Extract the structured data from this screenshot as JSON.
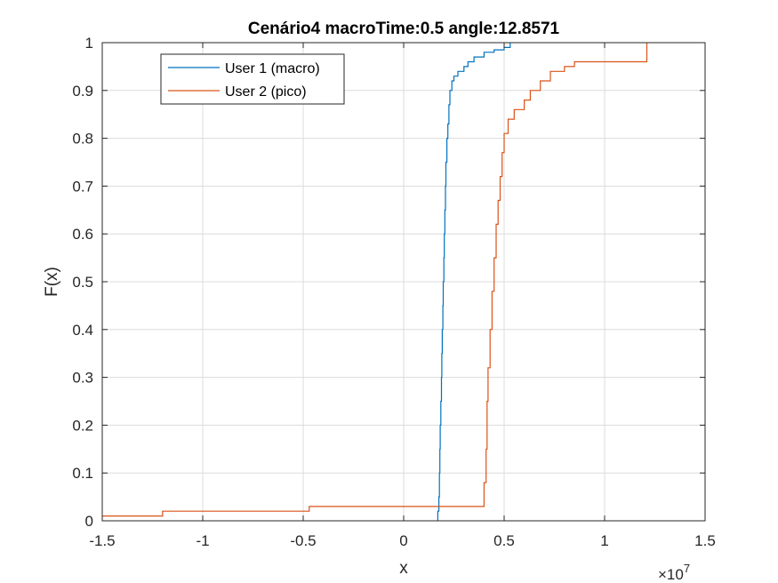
{
  "chart_data": {
    "type": "line",
    "step": true,
    "title": "Cenário4 macroTime:0.5 angle:12.8571",
    "xlabel": "x",
    "ylabel": "F(x)",
    "x_multiplier": "×10",
    "x_multiplier_exp": "7",
    "xlim": [
      -1.5,
      1.5
    ],
    "ylim": [
      0,
      1
    ],
    "xticks": [
      -1.5,
      -1,
      -0.5,
      0,
      0.5,
      1,
      1.5
    ],
    "xtick_labels": [
      "-1.5",
      "-1",
      "-0.5",
      "0",
      "0.5",
      "1",
      "1.5"
    ],
    "yticks": [
      0,
      0.1,
      0.2,
      0.3,
      0.4,
      0.5,
      0.6,
      0.7,
      0.8,
      0.9,
      1
    ],
    "ytick_labels": [
      "0",
      "0.1",
      "0.2",
      "0.3",
      "0.4",
      "0.5",
      "0.6",
      "0.7",
      "0.8",
      "0.9",
      "1"
    ],
    "grid": true,
    "legend_position": "top-left",
    "series": [
      {
        "name": "User 1 (macro)",
        "color": "#0072BD",
        "points": [
          [
            0.17,
            0
          ],
          [
            0.17,
            0.02
          ],
          [
            0.175,
            0.05
          ],
          [
            0.178,
            0.1
          ],
          [
            0.18,
            0.15
          ],
          [
            0.182,
            0.2
          ],
          [
            0.185,
            0.25
          ],
          [
            0.188,
            0.3
          ],
          [
            0.19,
            0.35
          ],
          [
            0.192,
            0.4
          ],
          [
            0.195,
            0.45
          ],
          [
            0.197,
            0.5
          ],
          [
            0.2,
            0.55
          ],
          [
            0.202,
            0.6
          ],
          [
            0.205,
            0.65
          ],
          [
            0.208,
            0.7
          ],
          [
            0.21,
            0.75
          ],
          [
            0.215,
            0.8
          ],
          [
            0.22,
            0.83
          ],
          [
            0.225,
            0.87
          ],
          [
            0.23,
            0.9
          ],
          [
            0.24,
            0.92
          ],
          [
            0.25,
            0.93
          ],
          [
            0.27,
            0.94
          ],
          [
            0.3,
            0.95
          ],
          [
            0.32,
            0.96
          ],
          [
            0.35,
            0.97
          ],
          [
            0.4,
            0.98
          ],
          [
            0.45,
            0.985
          ],
          [
            0.5,
            0.99
          ],
          [
            0.53,
            1.0
          ]
        ]
      },
      {
        "name": "User 2 (pico)",
        "color": "#D95319",
        "points": [
          [
            -1.5,
            0.01
          ],
          [
            -1.2,
            0.01
          ],
          [
            -1.2,
            0.02
          ],
          [
            -0.47,
            0.02
          ],
          [
            -0.47,
            0.03
          ],
          [
            0.39,
            0.03
          ],
          [
            0.4,
            0.08
          ],
          [
            0.41,
            0.15
          ],
          [
            0.415,
            0.25
          ],
          [
            0.42,
            0.32
          ],
          [
            0.43,
            0.4
          ],
          [
            0.44,
            0.48
          ],
          [
            0.45,
            0.55
          ],
          [
            0.46,
            0.62
          ],
          [
            0.47,
            0.67
          ],
          [
            0.48,
            0.72
          ],
          [
            0.49,
            0.77
          ],
          [
            0.5,
            0.81
          ],
          [
            0.52,
            0.84
          ],
          [
            0.55,
            0.86
          ],
          [
            0.6,
            0.88
          ],
          [
            0.63,
            0.9
          ],
          [
            0.68,
            0.92
          ],
          [
            0.73,
            0.94
          ],
          [
            0.8,
            0.95
          ],
          [
            0.85,
            0.96
          ],
          [
            1.21,
            0.96
          ],
          [
            1.21,
            1.0
          ]
        ]
      }
    ]
  }
}
